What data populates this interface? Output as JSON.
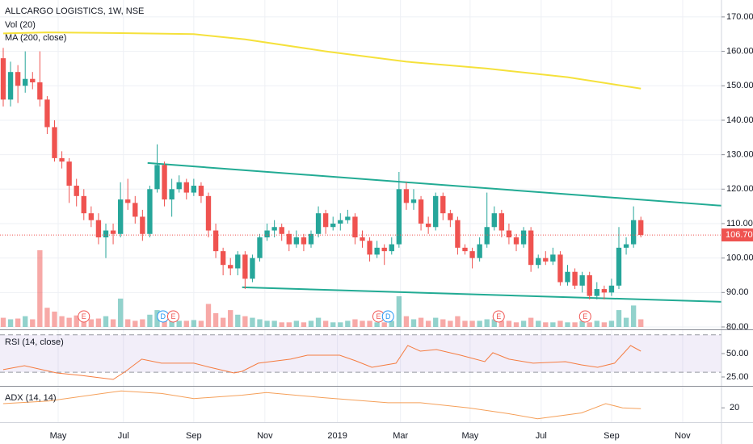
{
  "chart_data": {
    "type": "candlestick",
    "title": "ALLCARGO LOGISTICS, 1W, NSE",
    "xlim": [
      -0.44,
      98.0
    ],
    "xticks": [
      {
        "value": 7.5,
        "label": "May"
      },
      {
        "value": 16.4,
        "label": "Jul"
      },
      {
        "value": 26.0,
        "label": "Sep"
      },
      {
        "value": 35.7,
        "label": "Nov"
      },
      {
        "value": 45.6,
        "label": "2019"
      },
      {
        "value": 54.2,
        "label": "Mar"
      },
      {
        "value": 63.7,
        "label": "May"
      },
      {
        "value": 73.4,
        "label": "Jul"
      },
      {
        "value": 83.0,
        "label": "Sep"
      },
      {
        "value": 92.7,
        "label": "Nov"
      }
    ],
    "ylim": [
      79.3,
      174.9
    ],
    "yticks": [
      {
        "value": 80,
        "label": "80.00"
      },
      {
        "value": 90,
        "label": "90.00"
      },
      {
        "value": 100,
        "label": "100.00"
      },
      {
        "value": 110,
        "label": "110.00"
      },
      {
        "value": 120,
        "label": "120.00"
      },
      {
        "value": 130,
        "label": "130.00"
      },
      {
        "value": 140,
        "label": "140.00"
      },
      {
        "value": 150,
        "label": "150.00"
      },
      {
        "value": 160,
        "label": "160.00"
      },
      {
        "value": 170,
        "label": "170.00"
      }
    ],
    "grid": true,
    "up_color": "#26a69a",
    "down_color": "#ef5350",
    "candles": {
      "open": [
        158,
        146,
        154,
        150,
        152,
        151,
        146,
        138,
        129,
        128,
        121,
        118,
        113,
        111,
        106,
        108,
        107,
        117,
        116,
        112,
        107,
        120,
        127,
        117,
        120,
        122,
        119,
        121,
        118,
        108,
        102,
        98,
        97,
        101,
        94,
        100,
        106,
        108,
        109,
        107,
        104,
        106,
        104,
        107,
        113,
        109,
        110,
        111,
        112,
        106,
        105,
        101,
        103,
        102,
        104,
        120,
        116,
        117,
        110,
        109,
        118,
        113,
        111,
        103,
        102,
        100,
        104,
        109,
        113,
        108,
        106,
        104,
        108,
        98,
        100,
        99,
        101,
        93,
        96,
        92,
        95,
        89,
        91,
        90,
        92,
        103,
        104,
        111
      ],
      "high": [
        161,
        157,
        156,
        160,
        154,
        160,
        147,
        140,
        131,
        129,
        123,
        120,
        115,
        113,
        110,
        110,
        122,
        123,
        118,
        114,
        121,
        133,
        128,
        123,
        124,
        123,
        123,
        122,
        119,
        110,
        103,
        100,
        102,
        102,
        101,
        107,
        110,
        111,
        110,
        108,
        108,
        107,
        108,
        115,
        114,
        112,
        113,
        114,
        113,
        108,
        106,
        105,
        104,
        106,
        125,
        122,
        120,
        118,
        112,
        119,
        119,
        114,
        112,
        104,
        103,
        106,
        119,
        115,
        114,
        110,
        107,
        109,
        109,
        101,
        102,
        103,
        102,
        98,
        97,
        96,
        96,
        93,
        92,
        94,
        109,
        106,
        115,
        112
      ],
      "low": [
        144,
        144,
        145,
        148,
        149,
        144,
        136,
        128,
        126,
        116,
        115,
        111,
        109,
        104,
        100,
        104,
        106,
        114,
        110,
        105,
        106,
        119,
        115,
        112,
        119,
        117,
        118,
        116,
        106,
        100,
        95,
        95,
        95,
        91,
        93,
        99,
        105,
        106,
        105,
        102,
        103,
        102,
        103,
        106,
        107,
        108,
        108,
        110,
        104,
        103,
        99,
        100,
        98,
        101,
        103,
        114,
        114,
        108,
        107,
        108,
        111,
        109,
        101,
        101,
        97,
        99,
        103,
        108,
        106,
        104,
        102,
        103,
        96,
        97,
        98,
        98,
        92,
        92,
        91,
        90,
        88,
        88,
        88,
        89,
        91,
        101,
        103,
        106
      ],
      "close": [
        146,
        154,
        150,
        152,
        151,
        146,
        138,
        129,
        128,
        121,
        118,
        113,
        111,
        106,
        108,
        107,
        117,
        116,
        112,
        107,
        120,
        127,
        117,
        120,
        122,
        119,
        121,
        118,
        108,
        102,
        98,
        97,
        101,
        94,
        100,
        106,
        108,
        109,
        107,
        104,
        106,
        104,
        107,
        113,
        109,
        110,
        111,
        112,
        106,
        105,
        101,
        103,
        102,
        104,
        120,
        116,
        117,
        110,
        109,
        118,
        113,
        111,
        103,
        102,
        100,
        104,
        109,
        113,
        108,
        106,
        104,
        108,
        98,
        100,
        99,
        101,
        93,
        96,
        92,
        95,
        89,
        91,
        90,
        92,
        103,
        104,
        111,
        106.7
      ]
    },
    "volume": {
      "name": "Vol (20)",
      "values": [
        12,
        10,
        11,
        14,
        10,
        100,
        25,
        20,
        14,
        12,
        15,
        12,
        10,
        11,
        14,
        10,
        37,
        10,
        8,
        10,
        16,
        22,
        14,
        10,
        8,
        8,
        9,
        8,
        30,
        18,
        12,
        22,
        16,
        14,
        12,
        10,
        8,
        8,
        6,
        6,
        8,
        6,
        8,
        12,
        8,
        6,
        6,
        8,
        10,
        8,
        8,
        6,
        6,
        8,
        40,
        14,
        10,
        12,
        8,
        12,
        10,
        8,
        14,
        8,
        8,
        8,
        10,
        10,
        8,
        8,
        6,
        8,
        12,
        8,
        6,
        6,
        8,
        6,
        6,
        8,
        6,
        8,
        6,
        8,
        22,
        12,
        28,
        10
      ]
    },
    "ma": {
      "name": "MA (200, close)",
      "color": "#f5e13b",
      "x": [
        0,
        6,
        16,
        26,
        33,
        44,
        55,
        66,
        77,
        87
      ],
      "values": [
        165.2,
        165.5,
        165.3,
        165,
        163.5,
        160,
        157,
        155,
        152.5,
        149.2
      ]
    },
    "trendlines": [
      {
        "color": "#22ab94",
        "x": [
          19.7,
          98.0
        ],
        "values": [
          127.6,
          115.2
        ]
      },
      {
        "color": "#22ab94",
        "x": [
          32.6,
          98.0
        ],
        "values": [
          91.5,
          87.3
        ]
      }
    ],
    "last_price": {
      "value": 106.7,
      "label": "106.70",
      "color": "#ef5350"
    },
    "events": [
      {
        "x": 11.0,
        "label": "E",
        "color": "#ef5350"
      },
      {
        "x": 21.8,
        "label": "D",
        "color": "#2196f3"
      },
      {
        "x": 23.2,
        "label": "E",
        "color": "#ef5350"
      },
      {
        "x": 51.2,
        "label": "E",
        "color": "#ef5350"
      },
      {
        "x": 52.5,
        "label": "D",
        "color": "#2196f3"
      },
      {
        "x": 67.6,
        "label": "E",
        "color": "#ef5350"
      },
      {
        "x": 79.4,
        "label": "E",
        "color": "#ef5350"
      }
    ],
    "rsi": {
      "name": "RSI (14, close)",
      "color": "#f57c40",
      "ylim": [
        15.5,
        75
      ],
      "yticks": [
        {
          "value": 50,
          "label": "50.00"
        },
        {
          "value": 25,
          "label": "25.00"
        }
      ],
      "bands": [
        30,
        70
      ],
      "x": [
        0,
        2.9,
        7.3,
        10.6,
        15,
        16.7,
        18.9,
        21.6,
        26,
        28.2,
        31.5,
        32.6,
        34.8,
        39.2,
        41.5,
        45.9,
        48.1,
        50.3,
        53.6,
        55.2,
        56.9,
        59.1,
        62.4,
        65.7,
        66.8,
        69,
        72.3,
        76.7,
        78.9,
        81.1,
        83.4,
        85.6,
        87
      ],
      "values": [
        32.8,
        37.1,
        29.3,
        26.7,
        22.4,
        31,
        44,
        39.7,
        39.7,
        35.3,
        29.3,
        31,
        39.7,
        44,
        48.3,
        48.3,
        42.2,
        35.3,
        39.7,
        58.6,
        52.6,
        54.3,
        48.3,
        41.4,
        50.9,
        44,
        39.7,
        41.4,
        37.9,
        35.3,
        39.7,
        58.6,
        52.6
      ]
    },
    "adx": {
      "name": "ADX (14, 14)",
      "color": "#f5a05a",
      "ylim": [
        3,
        45
      ],
      "yticks": [
        20
      ],
      "x": [
        0,
        6.2,
        16.1,
        21.6,
        26,
        32.6,
        35.9,
        43.7,
        52.5,
        56.9,
        63.5,
        69,
        72.9,
        78.9,
        82.2,
        84.5,
        87
      ],
      "values": [
        25,
        28,
        40,
        37,
        31,
        35,
        38,
        32,
        26,
        26,
        20,
        13,
        7,
        14,
        25,
        20,
        19
      ]
    }
  }
}
